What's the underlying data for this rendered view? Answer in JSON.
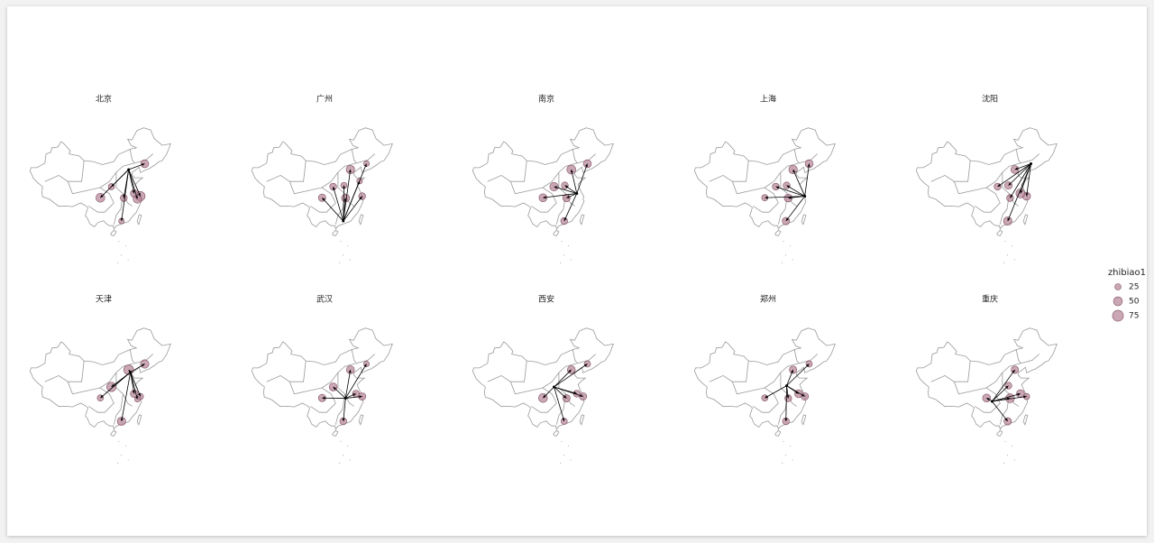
{
  "chart_data": {
    "type": "flowmap",
    "color": "#b98a9c",
    "stroke": "#7d4f60",
    "facets": [
      {
        "title": "北京",
        "hub": [
          116.4,
          39.9
        ],
        "points": [
          {
            "lon": 123.4,
            "lat": 41.8,
            "value": 40
          },
          {
            "lon": 121.5,
            "lat": 31.2,
            "value": 55
          },
          {
            "lon": 118.8,
            "lat": 32.1,
            "value": 35
          },
          {
            "lon": 104.1,
            "lat": 30.7,
            "value": 50
          },
          {
            "lon": 114.3,
            "lat": 30.6,
            "value": 30
          },
          {
            "lon": 113.3,
            "lat": 23.1,
            "value": 20
          },
          {
            "lon": 120.2,
            "lat": 30.3,
            "value": 45
          },
          {
            "lon": 108.9,
            "lat": 34.3,
            "value": 25
          }
        ]
      },
      {
        "title": "广州",
        "hub": [
          113.3,
          23.1
        ],
        "points": [
          {
            "lon": 116.4,
            "lat": 39.9,
            "value": 45
          },
          {
            "lon": 121.5,
            "lat": 31.2,
            "value": 30
          },
          {
            "lon": 108.9,
            "lat": 34.3,
            "value": 30
          },
          {
            "lon": 104.1,
            "lat": 30.7,
            "value": 35
          },
          {
            "lon": 114.3,
            "lat": 30.6,
            "value": 40
          },
          {
            "lon": 113.6,
            "lat": 34.7,
            "value": 25
          },
          {
            "lon": 120.4,
            "lat": 36.1,
            "value": 20
          },
          {
            "lon": 123.4,
            "lat": 41.8,
            "value": 20
          }
        ]
      },
      {
        "title": "南京",
        "hub": [
          118.8,
          32.1
        ],
        "points": [
          {
            "lon": 116.4,
            "lat": 39.9,
            "value": 50
          },
          {
            "lon": 123.4,
            "lat": 41.8,
            "value": 40
          },
          {
            "lon": 108.9,
            "lat": 34.3,
            "value": 45
          },
          {
            "lon": 104.1,
            "lat": 30.7,
            "value": 40
          },
          {
            "lon": 114.3,
            "lat": 30.6,
            "value": 35
          },
          {
            "lon": 113.3,
            "lat": 23.1,
            "value": 30
          },
          {
            "lon": 113.6,
            "lat": 34.7,
            "value": 30
          }
        ]
      },
      {
        "title": "上海",
        "hub": [
          121.5,
          31.2
        ],
        "points": [
          {
            "lon": 116.4,
            "lat": 39.9,
            "value": 45
          },
          {
            "lon": 123.4,
            "lat": 41.8,
            "value": 40
          },
          {
            "lon": 108.9,
            "lat": 34.3,
            "value": 30
          },
          {
            "lon": 104.1,
            "lat": 30.7,
            "value": 25
          },
          {
            "lon": 114.3,
            "lat": 30.6,
            "value": 40
          },
          {
            "lon": 113.3,
            "lat": 23.1,
            "value": 35
          },
          {
            "lon": 113.6,
            "lat": 34.7,
            "value": 30
          }
        ]
      },
      {
        "title": "沈阳",
        "hub": [
          123.4,
          41.8
        ],
        "points": [
          {
            "lon": 116.4,
            "lat": 39.9,
            "value": 40
          },
          {
            "lon": 121.5,
            "lat": 31.2,
            "value": 40
          },
          {
            "lon": 118.8,
            "lat": 32.1,
            "value": 50
          },
          {
            "lon": 108.9,
            "lat": 34.3,
            "value": 30
          },
          {
            "lon": 114.3,
            "lat": 30.6,
            "value": 30
          },
          {
            "lon": 113.3,
            "lat": 23.1,
            "value": 45
          },
          {
            "lon": 113.6,
            "lat": 34.7,
            "value": 35
          }
        ]
      },
      {
        "title": "天津",
        "hub": [
          117.2,
          39.1
        ],
        "points": [
          {
            "lon": 123.4,
            "lat": 41.8,
            "value": 45
          },
          {
            "lon": 121.5,
            "lat": 31.2,
            "value": 25
          },
          {
            "lon": 118.8,
            "lat": 32.1,
            "value": 35
          },
          {
            "lon": 104.1,
            "lat": 30.7,
            "value": 25
          },
          {
            "lon": 108.9,
            "lat": 34.3,
            "value": 55
          },
          {
            "lon": 113.3,
            "lat": 23.1,
            "value": 45
          },
          {
            "lon": 120.2,
            "lat": 30.3,
            "value": 20
          },
          {
            "lon": 116.4,
            "lat": 39.9,
            "value": 60
          }
        ]
      },
      {
        "title": "武汉",
        "hub": [
          114.3,
          30.6
        ],
        "points": [
          {
            "lon": 116.4,
            "lat": 39.9,
            "value": 40
          },
          {
            "lon": 121.5,
            "lat": 31.2,
            "value": 35
          },
          {
            "lon": 108.9,
            "lat": 34.3,
            "value": 40
          },
          {
            "lon": 104.1,
            "lat": 30.7,
            "value": 35
          },
          {
            "lon": 113.3,
            "lat": 23.1,
            "value": 30
          },
          {
            "lon": 118.8,
            "lat": 32.1,
            "value": 30
          },
          {
            "lon": 123.4,
            "lat": 41.8,
            "value": 20
          }
        ]
      },
      {
        "title": "西安",
        "hub": [
          108.9,
          34.3
        ],
        "points": [
          {
            "lon": 116.4,
            "lat": 39.9,
            "value": 40
          },
          {
            "lon": 121.5,
            "lat": 31.2,
            "value": 35
          },
          {
            "lon": 104.1,
            "lat": 30.7,
            "value": 50
          },
          {
            "lon": 114.3,
            "lat": 30.6,
            "value": 35
          },
          {
            "lon": 113.3,
            "lat": 23.1,
            "value": 25
          },
          {
            "lon": 118.8,
            "lat": 32.1,
            "value": 30
          },
          {
            "lon": 123.4,
            "lat": 41.8,
            "value": 25
          }
        ]
      },
      {
        "title": "郑州",
        "hub": [
          113.6,
          34.7
        ],
        "points": [
          {
            "lon": 116.4,
            "lat": 39.9,
            "value": 35
          },
          {
            "lon": 121.5,
            "lat": 31.2,
            "value": 35
          },
          {
            "lon": 104.1,
            "lat": 30.7,
            "value": 25
          },
          {
            "lon": 114.3,
            "lat": 30.6,
            "value": 30
          },
          {
            "lon": 113.3,
            "lat": 23.1,
            "value": 30
          },
          {
            "lon": 118.8,
            "lat": 32.1,
            "value": 40
          },
          {
            "lon": 123.4,
            "lat": 41.8,
            "value": 25
          }
        ]
      },
      {
        "title": "重庆",
        "hub": [
          106.5,
          29.6
        ],
        "points": [
          {
            "lon": 116.4,
            "lat": 39.9,
            "value": 35
          },
          {
            "lon": 121.5,
            "lat": 31.2,
            "value": 25
          },
          {
            "lon": 104.1,
            "lat": 30.7,
            "value": 40
          },
          {
            "lon": 114.3,
            "lat": 30.6,
            "value": 50
          },
          {
            "lon": 113.3,
            "lat": 23.1,
            "value": 35
          },
          {
            "lon": 118.8,
            "lat": 32.1,
            "value": 40
          },
          {
            "lon": 113.6,
            "lat": 34.7,
            "value": 30
          }
        ]
      }
    ],
    "legend": {
      "title": "zhibiao1",
      "values": [
        25,
        50,
        75
      ]
    }
  }
}
